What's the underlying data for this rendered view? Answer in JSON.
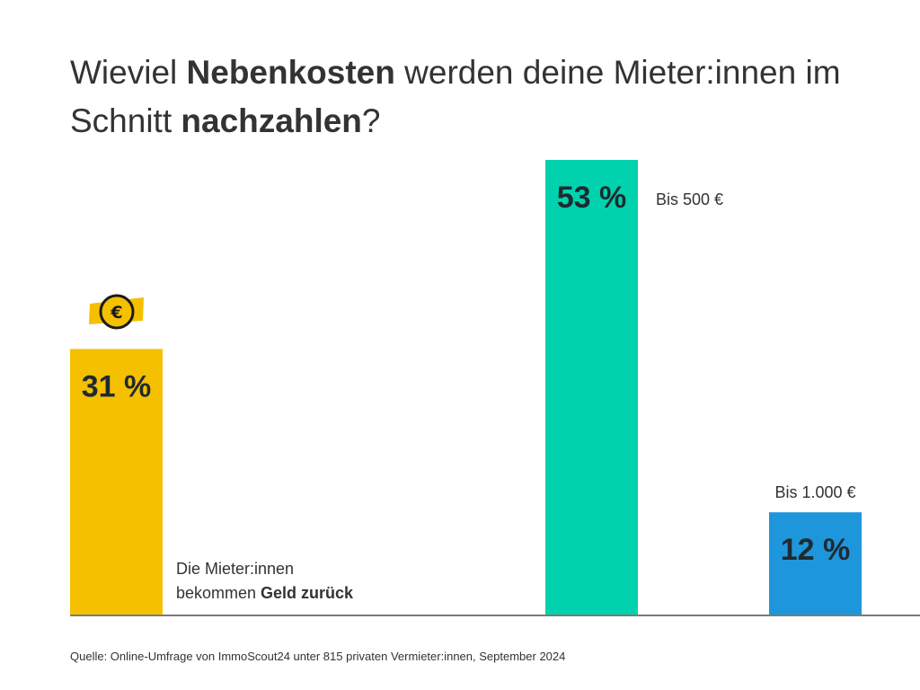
{
  "title": {
    "part1": "Wieviel ",
    "bold1": "Nebenkosten",
    "part2": " werden deine Mieter:innen im Schnitt ",
    "bold2": "nachzahlen",
    "part3": "?"
  },
  "chart_data": {
    "type": "bar",
    "title": "Wieviel Nebenkosten werden deine Mieter:innen im Schnitt nachzahlen?",
    "categories": [
      "Die Mieter:innen bekommen Geld zurück",
      "Bis 500 €",
      "Bis 1.000 €"
    ],
    "values": [
      31,
      53,
      12
    ],
    "value_labels": [
      "31 %",
      "53 %",
      "12 %"
    ],
    "unit": "%",
    "ylim": [
      0,
      53
    ],
    "colors": [
      "#f5c000",
      "#00d2ad",
      "#1e96dc"
    ],
    "xlabel": "",
    "ylabel": "",
    "grid": false
  },
  "note": {
    "line1": "Die Mieter:innen",
    "line2_plain": "bekommen ",
    "line2_bold": "Geld zurück"
  },
  "icons": {
    "coin": "euro-coin-icon"
  },
  "source": "Quelle: Online-Umfrage von ImmoScout24 unter 815 privaten Vermieter:innen, September 2024"
}
